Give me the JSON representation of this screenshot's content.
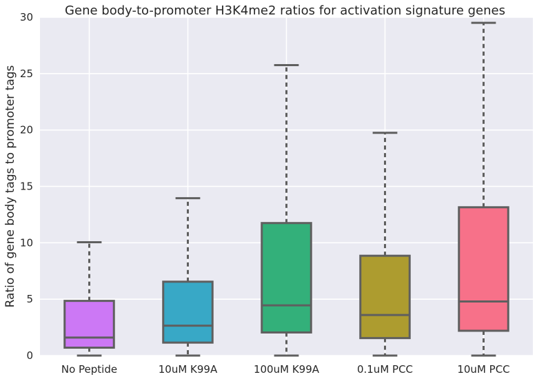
{
  "chart_data": {
    "type": "box",
    "title": "Gene body-to-promoter H3K4me2 ratios for activation signature genes",
    "xlabel": "",
    "ylabel": "Ratio of gene body tags to promoter tags",
    "ylim": [
      0,
      30
    ],
    "yticks": [
      0,
      5,
      10,
      15,
      20,
      25,
      30
    ],
    "grid": true,
    "categories": [
      "No Peptide",
      "10uM K99A",
      "100uM K99A",
      "0.1uM PCC",
      "10uM PCC"
    ],
    "boxes": [
      {
        "category": "No Peptide",
        "whisker_low": 0,
        "q1": 0.7,
        "median": 1.6,
        "q3": 4.85,
        "whisker_high": 10.05,
        "color": "#cc78f5"
      },
      {
        "category": "10uM K99A",
        "whisker_low": 0,
        "q1": 1.15,
        "median": 2.65,
        "q3": 6.55,
        "whisker_high": 13.95,
        "color": "#38a8c6"
      },
      {
        "category": "100uM K99A",
        "whisker_low": 0,
        "q1": 2.05,
        "median": 4.45,
        "q3": 11.75,
        "whisker_high": 25.75,
        "color": "#33b07a"
      },
      {
        "category": "0.1uM PCC",
        "whisker_low": 0,
        "q1": 1.55,
        "median": 3.6,
        "q3": 8.85,
        "whisker_high": 19.75,
        "color": "#ad9c2f"
      },
      {
        "category": "10uM PCC",
        "whisker_low": 0,
        "q1": 2.2,
        "median": 4.8,
        "q3": 13.15,
        "whisker_high": 29.5,
        "color": "#f77189"
      }
    ]
  }
}
